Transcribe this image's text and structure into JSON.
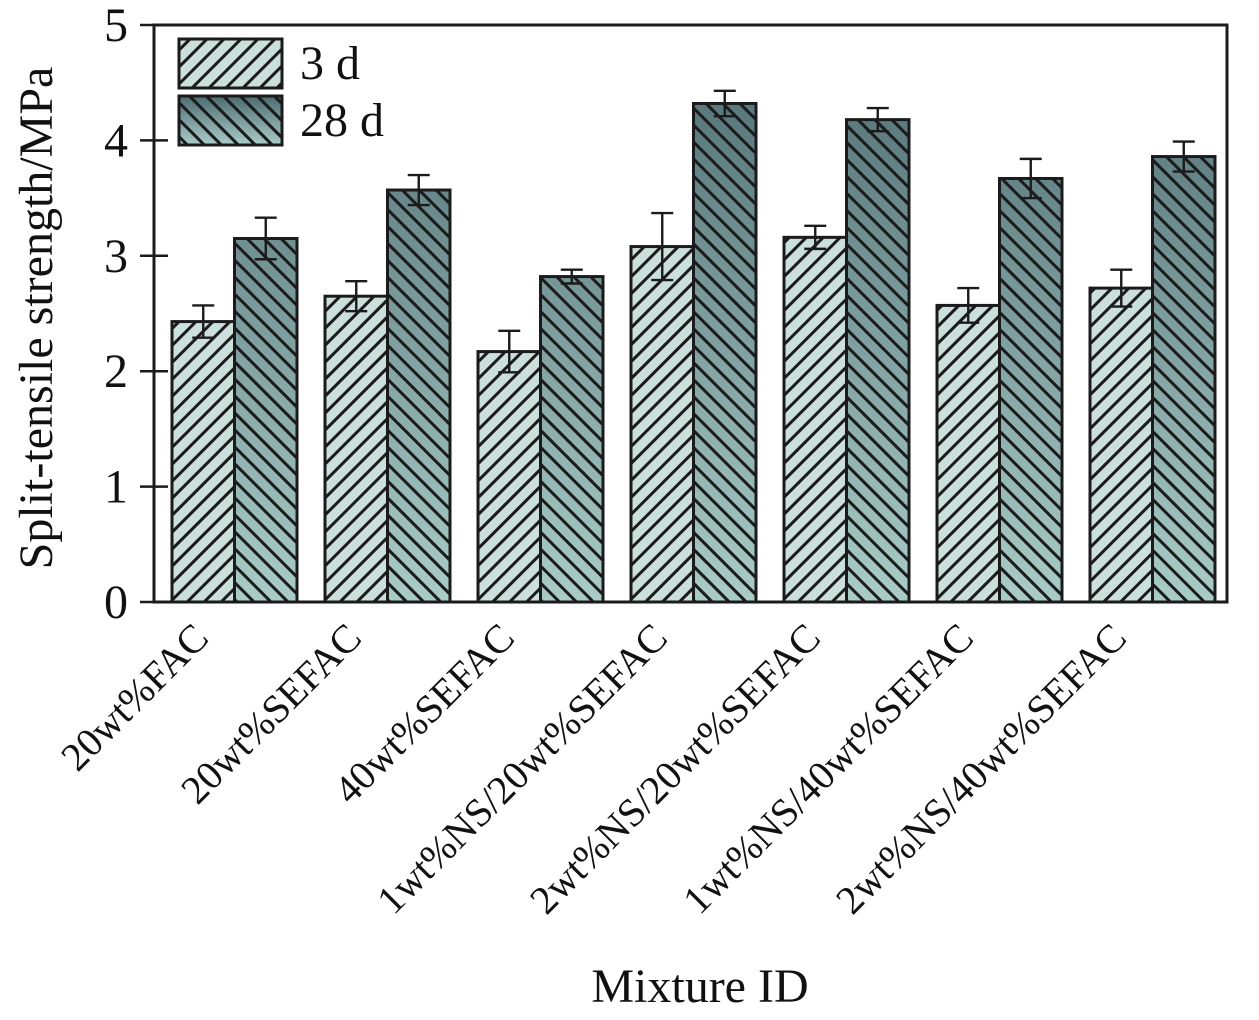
{
  "figure": {
    "title": "",
    "legend": {
      "position": "top-left",
      "items": [
        {
          "label": "3 d",
          "swatch": "light-forward-hatch"
        },
        {
          "label": "28 d",
          "swatch": "dark-backward-hatch"
        }
      ]
    }
  },
  "colors": {
    "bar_3d_fill": "#cbdfdb",
    "bar_28d_gradient_top": "#4d6b71",
    "bar_28d_gradient_bottom": "#a9ccc7",
    "hatch_line": "#1b1b1b",
    "axis_line": "#1b1b1b",
    "text": "#111111"
  },
  "chart_data": {
    "type": "bar",
    "title": "",
    "xlabel": "Mixture ID",
    "ylabel": "Split-tensile strength/MPa",
    "ylim": [
      0,
      5
    ],
    "yticks": [
      "0",
      "1",
      "2",
      "3",
      "4",
      "5"
    ],
    "grid": false,
    "legend_position": "top-left inside plot",
    "error_bars": true,
    "categories": [
      "20wt%FAC",
      "20wt%SEFAC",
      "40wt%SEFAC",
      "1wt%NS/20wt%SEFAC",
      "2wt%NS/20wt%SEFAC",
      "1wt%NS/40wt%SEFAC",
      "2wt%NS/40wt%SEFAC"
    ],
    "series": [
      {
        "name": "3 d",
        "hatch": "/",
        "values": [
          2.43,
          2.65,
          2.17,
          3.08,
          3.16,
          2.57,
          2.72
        ],
        "errors": [
          0.14,
          0.13,
          0.18,
          0.29,
          0.1,
          0.15,
          0.16
        ]
      },
      {
        "name": "28 d",
        "hatch": "\\",
        "values": [
          3.15,
          3.57,
          2.82,
          4.32,
          4.18,
          3.67,
          3.86
        ],
        "errors": [
          0.18,
          0.13,
          0.06,
          0.11,
          0.1,
          0.17,
          0.13
        ]
      }
    ]
  }
}
